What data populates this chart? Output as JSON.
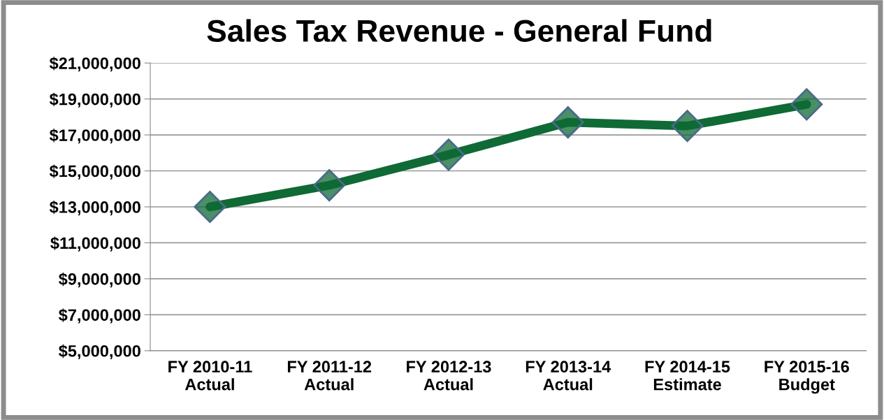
{
  "chart_data": {
    "type": "line",
    "title": "Sales Tax Revenue - General Fund",
    "categories": [
      "FY 2010-11\nActual",
      "FY 2011-12\nActual",
      "FY 2012-13\nActual",
      "FY 2013-14\nActual",
      "FY 2014-15\nEstimate",
      "FY 2015-16\nBudget"
    ],
    "series": [
      {
        "color": "#0f6a35",
        "values": [
          13000000,
          14200000,
          15900000,
          17700000,
          17500000,
          18700000
        ]
      }
    ],
    "ylim": [
      5000000,
      21000000
    ],
    "yticks": [
      {
        "value": 5000000,
        "label": "$5,000,000"
      },
      {
        "value": 7000000,
        "label": "$7,000,000"
      },
      {
        "value": 9000000,
        "label": "$9,000,000"
      },
      {
        "value": 11000000,
        "label": "$11,000,000"
      },
      {
        "value": 13000000,
        "label": "$13,000,000"
      },
      {
        "value": 15000000,
        "label": "$15,000,000"
      },
      {
        "value": 17000000,
        "label": "$17,000,000"
      },
      {
        "value": 19000000,
        "label": "$19,000,000"
      },
      {
        "value": 21000000,
        "label": "$21,000,000"
      }
    ],
    "grid": "y",
    "marker": "diamond",
    "line_style": "solid"
  }
}
